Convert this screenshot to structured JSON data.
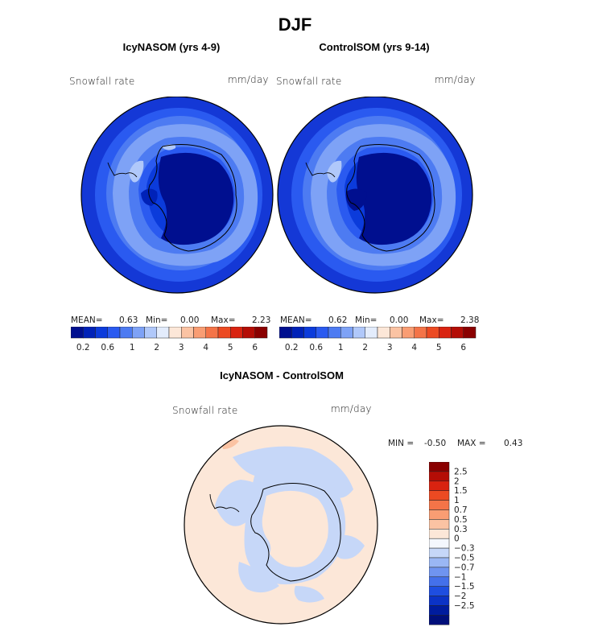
{
  "figure_title": "DJF",
  "panels": [
    {
      "title": "IcyNASOM (yrs 4-9)",
      "field_label": "Snowfall rate",
      "units": "mm/day",
      "stats": {
        "mean_label": "MEAN=",
        "mean": "0.63",
        "min_label": "Min=",
        "min": "0.00",
        "max_label": "Max=",
        "max": "2.23"
      }
    },
    {
      "title": "ControlSOM (yrs 9-14)",
      "field_label": "Snowfall rate",
      "units": "mm/day",
      "stats": {
        "mean_label": "MEAN=",
        "mean": "0.62",
        "min_label": "Min=",
        "min": "0.00",
        "max_label": "Max=",
        "max": "2.38"
      }
    }
  ],
  "colorbar_horizontal": {
    "colors": [
      "#000f8f",
      "#0022b8",
      "#0b3bdb",
      "#2a5af0",
      "#4d7bf2",
      "#7ea2f6",
      "#b0c8fa",
      "#e3ecfc",
      "#fce7d8",
      "#fbc3a3",
      "#f99d73",
      "#f47448",
      "#ec4a22",
      "#d92310",
      "#b40d06",
      "#8a0000"
    ],
    "tick_labels": [
      "0.2",
      "0.6",
      "1",
      "2",
      "3",
      "4",
      "5",
      "6"
    ]
  },
  "difference_panel": {
    "title": "IcyNASOM - ControlSOM",
    "field_label": "Snowfall rate",
    "units": "mm/day",
    "min_label": "MIN =",
    "min": "-0.50",
    "max_label": "MAX =",
    "max": "0.43"
  },
  "colorbar_vertical": {
    "colors": [
      "#8a0000",
      "#b40d06",
      "#d92310",
      "#ec4a22",
      "#f47448",
      "#f99d73",
      "#fbc3a3",
      "#fce7d8",
      "#f4f7fd",
      "#c6d7f8",
      "#9ab7f4",
      "#6f94f0",
      "#4470ea",
      "#1e4ee0",
      "#0b33c6",
      "#001c9e",
      "#000f7a"
    ],
    "tick_labels": [
      "2.5",
      "2",
      "1.5",
      "1",
      "0.7",
      "0.5",
      "0.3",
      "0",
      "−0.3",
      "−0.5",
      "−0.7",
      "−1",
      "−1.5",
      "−2",
      "−2.5"
    ]
  }
}
